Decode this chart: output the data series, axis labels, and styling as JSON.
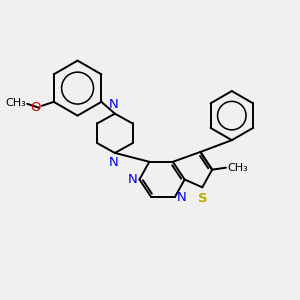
{
  "bg_color": "#f0f0f0",
  "atom_colors": {
    "N": "#0000ee",
    "O": "#dd0000",
    "S": "#bbaa00",
    "C": "#000000"
  },
  "bond_color": "#000000",
  "bond_width": 1.4,
  "font_size": 9.5
}
